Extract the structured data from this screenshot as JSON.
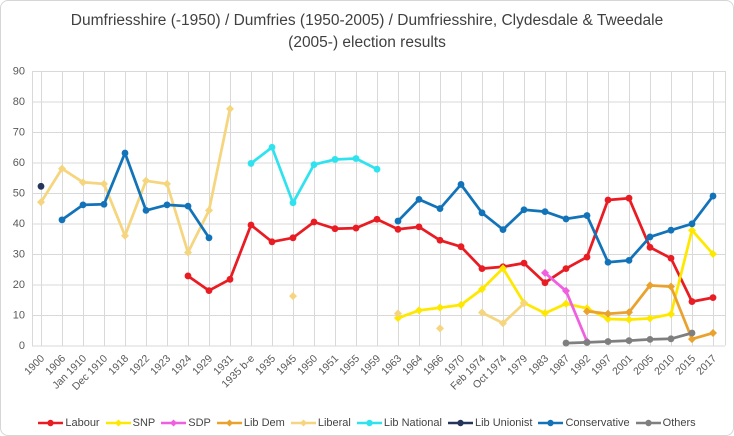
{
  "chart_data": {
    "type": "line",
    "title": "Dumfriesshire (-1950) / Dumfries (1950-2005) / Dumfriesshire, Clydesdale & Tweedale (2005-) election results",
    "xlabel": "",
    "ylabel": "",
    "y_axis": {
      "min": 0,
      "max": 90,
      "step": 10
    },
    "grid": true,
    "legend_position": "bottom",
    "categories": [
      "1900",
      "1906",
      "Jan 1910",
      "Dec 1910",
      "1918",
      "1922",
      "1923",
      "1924",
      "1929",
      "1931",
      "1935 b-e",
      "1935",
      "1945",
      "1950",
      "1951",
      "1955",
      "1959",
      "1963",
      "1964",
      "1966",
      "1970",
      "Feb 1974",
      "Oct 1974",
      "1979",
      "1983",
      "1987",
      "1992",
      "1997",
      "2001",
      "2005",
      "2010",
      "2015",
      "2017"
    ],
    "series": [
      {
        "name": "Labour",
        "color": "#e91c23",
        "marker": "circle",
        "values": [
          null,
          null,
          null,
          null,
          null,
          null,
          null,
          22.8,
          18.0,
          21.7,
          39.5,
          34.0,
          35.3,
          40.5,
          38.3,
          38.5,
          41.4,
          38.1,
          38.9,
          34.5,
          32.4,
          25.2,
          25.8,
          27.0,
          20.6,
          25.2,
          29.0,
          47.7,
          48.3,
          32.2,
          28.6,
          14.4,
          15.7
        ]
      },
      {
        "name": "SNP",
        "color": "#ffe800",
        "marker": "diamond",
        "values": [
          null,
          null,
          null,
          null,
          null,
          null,
          null,
          null,
          null,
          null,
          null,
          null,
          null,
          null,
          null,
          null,
          null,
          9.0,
          11.5,
          12.4,
          13.3,
          18.5,
          25.3,
          14.0,
          10.6,
          13.7,
          12.2,
          8.7,
          8.5,
          8.9,
          10.3,
          37.8,
          30.0
        ]
      },
      {
        "name": "SDP",
        "color": "#ef5fe0",
        "marker": "diamond",
        "values": [
          null,
          null,
          null,
          null,
          null,
          null,
          null,
          null,
          null,
          null,
          null,
          null,
          null,
          null,
          null,
          null,
          null,
          null,
          null,
          null,
          null,
          null,
          null,
          null,
          23.8,
          17.9,
          1.3,
          null,
          null,
          null,
          null,
          null,
          null
        ]
      },
      {
        "name": "Lib Dem",
        "color": "#eaa22f",
        "marker": "diamond",
        "values": [
          null,
          null,
          null,
          null,
          null,
          null,
          null,
          null,
          null,
          null,
          null,
          null,
          null,
          null,
          null,
          null,
          null,
          null,
          null,
          null,
          null,
          null,
          null,
          null,
          null,
          null,
          11.2,
          10.4,
          10.9,
          19.7,
          19.3,
          2.1,
          4.1
        ]
      },
      {
        "name": "Liberal",
        "color": "#f5d57e",
        "marker": "diamond",
        "values": [
          47.0,
          58.0,
          53.5,
          53.0,
          36.0,
          54.0,
          53.0,
          30.5,
          44.3,
          77.6,
          null,
          null,
          16.2,
          null,
          null,
          null,
          null,
          10.5,
          null,
          5.6,
          null,
          10.8,
          7.3,
          13.8,
          null,
          null,
          null,
          null,
          null,
          null,
          null,
          null,
          null
        ]
      },
      {
        "name": "Lib National",
        "color": "#2fe3ee",
        "marker": "circle",
        "values": [
          null,
          null,
          null,
          null,
          null,
          null,
          null,
          null,
          null,
          null,
          59.7,
          65.0,
          46.8,
          59.3,
          61.0,
          61.3,
          57.8,
          null,
          null,
          null,
          null,
          null,
          null,
          null,
          null,
          null,
          null,
          null,
          null,
          null,
          null,
          null,
          null
        ]
      },
      {
        "name": "Lib Unionist",
        "color": "#26365a",
        "marker": "circle",
        "values": [
          52.2,
          null,
          null,
          null,
          null,
          null,
          null,
          null,
          null,
          null,
          null,
          null,
          null,
          null,
          null,
          null,
          null,
          null,
          null,
          null,
          null,
          null,
          null,
          null,
          null,
          null,
          null,
          null,
          null,
          null,
          null,
          null,
          null
        ]
      },
      {
        "name": "Conservative",
        "color": "#1373b9",
        "marker": "circle",
        "values": [
          null,
          41.2,
          46.1,
          46.3,
          63.1,
          44.3,
          46.1,
          45.7,
          35.3,
          null,
          null,
          null,
          null,
          null,
          null,
          null,
          null,
          40.8,
          47.9,
          44.9,
          52.8,
          43.5,
          38.0,
          44.5,
          43.9,
          41.5,
          42.6,
          27.3,
          27.9,
          35.6,
          37.8,
          39.9,
          49.0
        ]
      },
      {
        "name": "Others",
        "color": "#7f7f7f",
        "marker": "circle",
        "values": [
          null,
          null,
          null,
          null,
          null,
          null,
          null,
          null,
          null,
          null,
          null,
          null,
          null,
          null,
          null,
          null,
          null,
          null,
          null,
          null,
          null,
          null,
          null,
          null,
          null,
          0.8,
          1.0,
          1.3,
          1.6,
          2.0,
          2.2,
          4.1,
          null
        ]
      }
    ]
  }
}
